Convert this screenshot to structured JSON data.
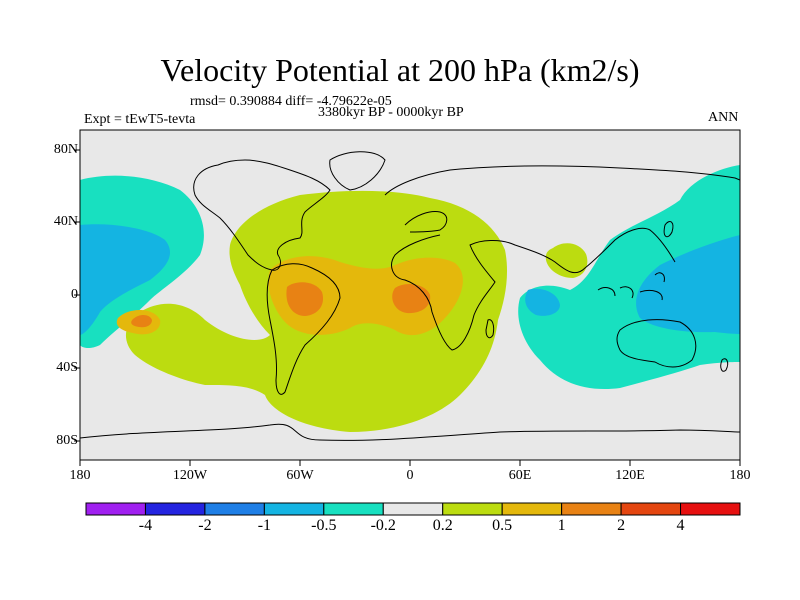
{
  "title": "Velocity Potential at 200 hPa (km2/s)",
  "stats": "rmsd= 0.390884 diff= -4.79622e-05",
  "left_label": "Expt = tEwT5-tevta",
  "center_label": "3380kyr BP - 0000kyr BP",
  "right_label": "ANN",
  "chart_data": {
    "type": "heatmap",
    "description_of_field": "Difference map of 200 hPa velocity potential; positive anomaly centered over tropical South America and Atlantic/Africa, negative anomalies over the Pacific and Maritime Continent/Indian Ocean.",
    "x_ticks": [
      "180",
      "120W",
      "60W",
      "0",
      "60E",
      "120E",
      "180"
    ],
    "y_ticks": [
      "80N",
      "40N",
      "0",
      "40S",
      "80S"
    ],
    "xlim": [
      -180,
      180
    ],
    "ylim": [
      -90,
      90
    ],
    "colorbar": {
      "labels": [
        "-4",
        "-2",
        "-1",
        "-0.5",
        "-0.2",
        "0.2",
        "0.5",
        "1",
        "2",
        "4"
      ],
      "levels": [
        -4,
        -2,
        -1,
        -0.5,
        -0.2,
        0.2,
        0.5,
        1,
        2,
        4
      ],
      "colors": [
        "#a020f0",
        "#2424e0",
        "#1f7fe6",
        "#14b4e2",
        "#18e0c0",
        "#e8e8e8",
        "#bcdc10",
        "#e4b80c",
        "#e88214",
        "#e44610",
        "#e61010"
      ]
    },
    "features": [
      {
        "name": "central-positive-region",
        "level": 0.2,
        "center_lonlat": [
          -10,
          0
        ]
      },
      {
        "name": "south-america-maximum",
        "level": 1,
        "center_lonlat": [
          -55,
          -2
        ]
      },
      {
        "name": "africa-maximum",
        "level": 1,
        "center_lonlat": [
          -1,
          -3
        ]
      },
      {
        "name": "north-pacific-negative",
        "level": -0.2,
        "center_lonlat": [
          -160,
          30
        ]
      },
      {
        "name": "west-pacific-negative",
        "level": -0.2,
        "center_lonlat": [
          130,
          5
        ]
      },
      {
        "name": "south-pacific-positive-max",
        "level": 0.5,
        "center_lonlat": [
          -142,
          -14
        ]
      },
      {
        "name": "india-positive",
        "level": 0.2,
        "center_lonlat": [
          80,
          18
        ]
      }
    ]
  }
}
